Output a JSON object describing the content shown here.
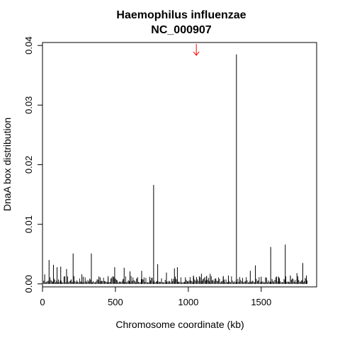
{
  "chart_data": {
    "type": "bar",
    "title": "Haemophilus influenzae",
    "subtitle": "NC_000907",
    "xlabel": "Chromosome coordinate (kb)",
    "ylabel": "DnaA box distribution",
    "xlim": [
      0,
      1880
    ],
    "ylim": [
      -0.0005,
      0.0405
    ],
    "x_ticks": [
      0,
      500,
      1000,
      1500
    ],
    "x_tick_labels": [
      "0",
      "500",
      "1000",
      "1500"
    ],
    "y_ticks": [
      0,
      0.01,
      0.02,
      0.03,
      0.04
    ],
    "y_tick_labels": [
      "0.00",
      "0.01",
      "0.02",
      "0.03",
      "0.04"
    ],
    "marker": {
      "type": "arrow-down",
      "x": 1055,
      "y": 0.0393,
      "color": "#ff0000"
    },
    "line_color": "#000000",
    "series": [
      {
        "x": [
          15,
          45,
          75,
          100,
          125,
          165,
          210,
          270,
          335,
          395,
          450,
          495,
          560,
          600,
          645,
          680,
          735,
          762,
          790,
          850,
          905,
          925,
          980,
          1035,
          1090,
          1125,
          1150,
          1240,
          1275,
          1330,
          1425,
          1460,
          1500,
          1530,
          1565,
          1620,
          1665,
          1700,
          1745,
          1785,
          1810
        ],
        "y": [
          0.0016,
          0.004,
          0.0032,
          0.0028,
          0.0029,
          0.0025,
          0.0051,
          0.0016,
          0.0051,
          0.0011,
          0.0013,
          0.0028,
          0.0027,
          0.0021,
          0.0008,
          0.0022,
          0.0012,
          0.0166,
          0.0033,
          0.0019,
          0.0026,
          0.0028,
          0.0011,
          0.0014,
          0.0017,
          0.0013,
          0.0017,
          0.0012,
          0.0014,
          0.0385,
          0.0022,
          0.0031,
          0.0012,
          0.0011,
          0.0062,
          0.0011,
          0.0066,
          0.0014,
          0.0018,
          0.0035,
          0.0014
        ]
      }
    ]
  }
}
